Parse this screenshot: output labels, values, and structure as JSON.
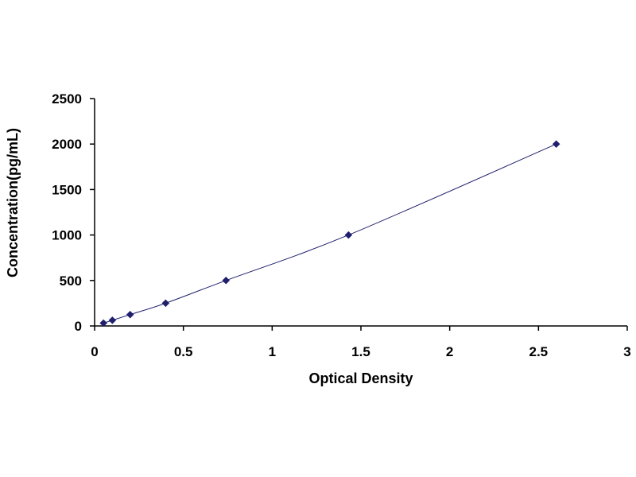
{
  "chart_data": {
    "type": "line",
    "title": "",
    "xlabel": "Optical Density",
    "ylabel": "Concentration(pg/mL)",
    "xlim": [
      0,
      3
    ],
    "ylim": [
      0,
      2500
    ],
    "x_ticks": [
      "0",
      "0.5",
      "1",
      "1.5",
      "2",
      "2.5",
      "3"
    ],
    "y_ticks": [
      "0",
      "500",
      "1000",
      "1500",
      "2000",
      "2500"
    ],
    "x_tick_values": [
      0,
      0.5,
      1,
      1.5,
      2,
      2.5,
      3
    ],
    "y_tick_values": [
      0,
      500,
      1000,
      1500,
      2000,
      2500
    ],
    "grid": false,
    "legend": "none",
    "series": [
      {
        "x": [
          0.05,
          0.1,
          0.2,
          0.4,
          0.74,
          1.43,
          2.6
        ],
        "y": [
          31.25,
          62.5,
          125,
          250,
          500,
          1000,
          2000
        ],
        "marker": "diamond",
        "color": "#1f1f6e"
      }
    ]
  }
}
